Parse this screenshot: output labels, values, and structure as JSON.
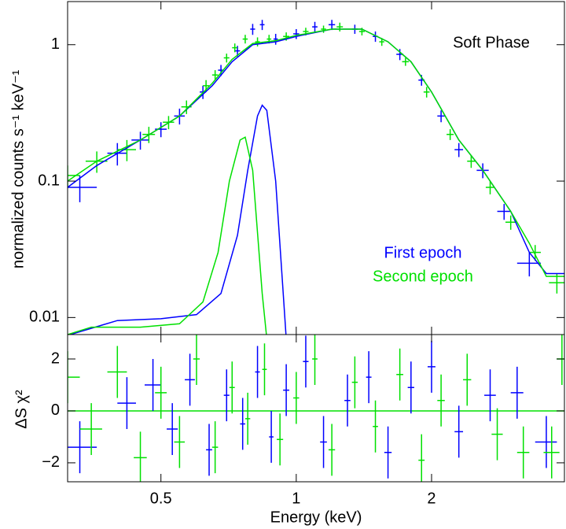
{
  "chart_data": [
    {
      "type": "spectrum",
      "ylabel": "normalized counts s⁻¹ keV⁻¹",
      "annotation": "Soft Phase",
      "xlog": true,
      "ylog": true,
      "xlim": [
        0.31,
        3.95
      ],
      "ylim": [
        0.0075,
        2.07
      ],
      "xticks": [
        0.5,
        1,
        2
      ],
      "show_xtick_labels": false,
      "yticks": [
        0.01,
        0.1,
        1
      ],
      "series": [
        {
          "name": "First epoch",
          "color": "#0000ff",
          "kind": "errorbar",
          "x": [
            0.33,
            0.4,
            0.45,
            0.5,
            0.55,
            0.62,
            0.68,
            0.74,
            0.8,
            0.84,
            0.9,
            1.0,
            1.1,
            1.2,
            1.35,
            1.5,
            1.7,
            1.9,
            2.1,
            2.3,
            2.6,
            2.9,
            3.3
          ],
          "values": [
            0.09,
            0.16,
            0.2,
            0.24,
            0.3,
            0.45,
            0.65,
            0.9,
            1.3,
            1.4,
            1.1,
            1.2,
            1.35,
            1.4,
            1.3,
            1.15,
            0.85,
            0.55,
            0.3,
            0.17,
            0.12,
            0.06,
            0.025
          ],
          "errors": [
            0.02,
            0.03,
            0.03,
            0.03,
            0.04,
            0.05,
            0.06,
            0.08,
            0.12,
            0.12,
            0.1,
            0.1,
            0.12,
            0.12,
            0.1,
            0.1,
            0.08,
            0.05,
            0.03,
            0.02,
            0.015,
            0.008,
            0.005
          ],
          "x_errors": [
            0.03,
            0.02,
            0.02,
            0.015,
            0.015,
            0.01,
            0.01,
            0.01,
            0.01,
            0.01,
            0.01,
            0.015,
            0.015,
            0.02,
            0.02,
            0.02,
            0.03,
            0.03,
            0.04,
            0.05,
            0.08,
            0.1,
            0.2
          ]
        },
        {
          "name": "Second epoch",
          "color": "#00e000",
          "kind": "errorbar",
          "x": [
            0.31,
            0.36,
            0.42,
            0.47,
            0.52,
            0.57,
            0.63,
            0.66,
            0.7,
            0.73,
            0.77,
            0.82,
            0.87,
            0.95,
            1.05,
            1.15,
            1.25,
            1.4,
            1.55,
            1.75,
            1.95,
            2.2,
            2.45,
            2.7,
            3.0,
            3.4,
            3.8
          ],
          "values": [
            0.11,
            0.14,
            0.17,
            0.22,
            0.27,
            0.35,
            0.5,
            0.6,
            0.8,
            0.95,
            1.1,
            1.05,
            1.1,
            1.15,
            1.25,
            1.3,
            1.35,
            1.25,
            1.05,
            0.75,
            0.45,
            0.22,
            0.14,
            0.09,
            0.05,
            0.03,
            0.018
          ],
          "errors": [
            0.02,
            0.025,
            0.03,
            0.03,
            0.03,
            0.04,
            0.05,
            0.05,
            0.06,
            0.07,
            0.08,
            0.08,
            0.08,
            0.08,
            0.08,
            0.08,
            0.1,
            0.08,
            0.07,
            0.05,
            0.04,
            0.02,
            0.015,
            0.01,
            0.006,
            0.004,
            0.003
          ],
          "x_errors": [
            0.02,
            0.02,
            0.02,
            0.015,
            0.015,
            0.015,
            0.01,
            0.01,
            0.01,
            0.01,
            0.01,
            0.01,
            0.01,
            0.015,
            0.015,
            0.015,
            0.02,
            0.02,
            0.02,
            0.03,
            0.03,
            0.04,
            0.05,
            0.06,
            0.08,
            0.1,
            0.15
          ]
        },
        {
          "color": "#0000ff",
          "kind": "line",
          "x": [
            0.31,
            0.36,
            0.45,
            0.55,
            0.65,
            0.72,
            0.8,
            0.9,
            1.0,
            1.2,
            1.4,
            1.6,
            1.8,
            2.0,
            2.3,
            2.6,
            3.0,
            3.3,
            3.6,
            3.95
          ],
          "values": [
            0.09,
            0.13,
            0.2,
            0.3,
            0.5,
            0.75,
            1.0,
            1.05,
            1.15,
            1.3,
            1.3,
            1.05,
            0.75,
            0.45,
            0.2,
            0.12,
            0.06,
            0.03,
            0.021,
            0.021
          ]
        },
        {
          "color": "#00e000",
          "kind": "line",
          "x": [
            0.31,
            0.36,
            0.45,
            0.55,
            0.65,
            0.72,
            0.8,
            0.9,
            1.0,
            1.2,
            1.4,
            1.6,
            1.8,
            2.0,
            2.3,
            2.6,
            3.0,
            3.3,
            3.6,
            3.95
          ],
          "values": [
            0.1,
            0.14,
            0.2,
            0.3,
            0.52,
            0.78,
            1.02,
            1.07,
            1.17,
            1.3,
            1.3,
            1.05,
            0.75,
            0.45,
            0.2,
            0.12,
            0.06,
            0.035,
            0.02,
            0.02
          ]
        },
        {
          "color": "#0000ff",
          "kind": "line",
          "x": [
            0.31,
            0.4,
            0.5,
            0.6,
            0.68,
            0.74,
            0.78,
            0.82,
            0.84,
            0.86,
            0.9,
            0.93,
            0.95
          ],
          "values": [
            0.0074,
            0.0095,
            0.0098,
            0.0105,
            0.015,
            0.04,
            0.12,
            0.3,
            0.36,
            0.33,
            0.1,
            0.02,
            0.007
          ]
        },
        {
          "color": "#00e000",
          "kind": "line",
          "x": [
            0.31,
            0.35,
            0.45,
            0.55,
            0.62,
            0.67,
            0.71,
            0.75,
            0.77,
            0.8,
            0.84,
            0.86
          ],
          "values": [
            0.0075,
            0.0085,
            0.0085,
            0.009,
            0.013,
            0.03,
            0.1,
            0.2,
            0.21,
            0.12,
            0.015,
            0.007
          ]
        }
      ]
    },
    {
      "type": "spectrum",
      "xlabel": "Energy (keV)",
      "ylabel": "ΔS χ²",
      "xlog": true,
      "ylog": false,
      "xlim": [
        0.31,
        3.95
      ],
      "ylim": [
        -2.73,
        2.94
      ],
      "xticks": [
        0.5,
        1,
        2
      ],
      "show_xtick_labels": true,
      "yticks": [
        {
          "value": -2,
          "label": "−2"
        },
        0,
        2
      ],
      "reference_line": 0,
      "reference_color": "#00e000",
      "series": [
        {
          "color": "#0000ff",
          "kind": "errorbar",
          "x": [
            0.33,
            0.42,
            0.48,
            0.53,
            0.58,
            0.64,
            0.7,
            0.76,
            0.82,
            0.88,
            0.95,
            1.05,
            1.15,
            1.3,
            1.45,
            1.6,
            1.8,
            2.0,
            2.3,
            2.7,
            3.1,
            3.6
          ],
          "values": [
            -1.4,
            0.3,
            1.0,
            -0.7,
            1.2,
            -1.5,
            0.6,
            -0.5,
            1.5,
            -1.0,
            0.8,
            1.9,
            -1.2,
            0.4,
            1.3,
            -1.6,
            0.9,
            1.7,
            -0.8,
            0.6,
            0.7,
            -1.2
          ],
          "errors": [
            1,
            1,
            1,
            1,
            1,
            1,
            1,
            1,
            1,
            1,
            1,
            1,
            1,
            1,
            1,
            1,
            1,
            1,
            1,
            1,
            1,
            1
          ],
          "x_errors": [
            0.03,
            0.02,
            0.02,
            0.015,
            0.015,
            0.01,
            0.01,
            0.01,
            0.01,
            0.01,
            0.015,
            0.015,
            0.02,
            0.02,
            0.02,
            0.03,
            0.03,
            0.04,
            0.05,
            0.08,
            0.1,
            0.2
          ]
        },
        {
          "color": "#00e000",
          "kind": "errorbar",
          "x": [
            0.31,
            0.35,
            0.4,
            0.45,
            0.5,
            0.55,
            0.6,
            0.66,
            0.72,
            0.78,
            0.85,
            0.92,
            1.0,
            1.1,
            1.2,
            1.35,
            1.5,
            1.7,
            1.9,
            2.1,
            2.4,
            2.8,
            3.2,
            3.7,
            3.9
          ],
          "values": [
            1.3,
            -0.7,
            1.5,
            -1.8,
            0.7,
            -1.2,
            2.0,
            -1.4,
            0.9,
            -0.3,
            1.6,
            -1.1,
            0.5,
            2.0,
            -1.5,
            1.1,
            -0.6,
            1.4,
            -1.9,
            0.4,
            1.2,
            -0.9,
            -1.6,
            -1.6,
            2.0
          ],
          "errors": [
            1,
            1,
            1,
            1,
            1,
            1,
            1,
            1,
            1,
            1,
            1,
            1,
            1,
            1,
            1,
            1,
            1,
            1,
            1,
            1,
            1,
            1,
            1,
            1,
            1
          ],
          "x_errors": [
            0.02,
            0.02,
            0.02,
            0.015,
            0.015,
            0.015,
            0.01,
            0.01,
            0.01,
            0.01,
            0.01,
            0.015,
            0.015,
            0.015,
            0.02,
            0.02,
            0.02,
            0.03,
            0.03,
            0.04,
            0.05,
            0.08,
            0.1,
            0.15,
            0.1
          ]
        }
      ]
    }
  ]
}
